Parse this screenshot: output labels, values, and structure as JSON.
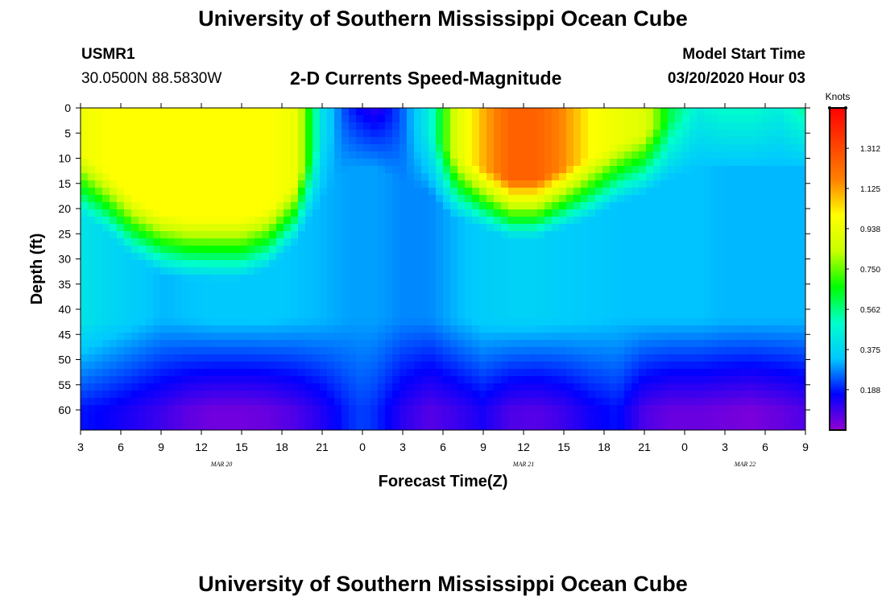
{
  "page": {
    "title": "University of Southern Mississippi Ocean Cube",
    "footer_title": "University of Southern Mississippi Ocean Cube",
    "station_id": "USMR1",
    "location": "30.0500N 88.5830W",
    "subtitle": "2-D Currents Speed-Magnitude",
    "model_start_label": "Model Start Time",
    "model_start_value": "03/20/2020 Hour 03"
  },
  "chart_data": {
    "type": "heatmap",
    "title": "2-D Currents Speed-Magnitude",
    "xlabel": "Forecast Time(Z)",
    "ylabel": "Depth (ft)",
    "x_hours_since_start": [
      0,
      54
    ],
    "ylim": [
      0,
      64
    ],
    "x_tick_labels": [
      "3",
      "6",
      "9",
      "12",
      "15",
      "18",
      "21",
      "0",
      "3",
      "6",
      "9",
      "12",
      "15",
      "18",
      "21",
      "0",
      "3",
      "6",
      "9"
    ],
    "y_ticks": [
      0,
      5,
      10,
      15,
      20,
      25,
      30,
      35,
      40,
      45,
      50,
      55,
      60
    ],
    "date_labels": [
      {
        "text": "MAR 20",
        "hour": 10.5
      },
      {
        "text": "MAR 21",
        "hour": 33
      },
      {
        "text": "MAR 22",
        "hour": 49.5
      }
    ],
    "colorbar": {
      "unit": "Knots",
      "range": [
        0,
        1.5
      ],
      "tick_labels": [
        "1.312",
        "1.125",
        "0.938",
        "0.750",
        "0.562",
        "0.375",
        "0.188"
      ],
      "tick_values": [
        1.312,
        1.125,
        0.938,
        0.75,
        0.562,
        0.375,
        0.188
      ],
      "colors": [
        "#9400d3",
        "#0000ff",
        "#00c8ff",
        "#00ffcc",
        "#00ff00",
        "#c8ff00",
        "#ffff00",
        "#ff8000",
        "#ff4000",
        "#ff0000"
      ]
    },
    "speed_columns": {
      "hours": [
        0,
        2,
        4,
        6,
        8,
        10,
        12,
        14,
        16,
        18,
        20,
        21,
        22,
        24,
        26,
        28,
        30,
        32,
        34,
        36,
        38,
        40,
        42,
        44,
        46,
        48,
        50,
        52,
        54
      ],
      "surface": [
        0.95,
        1.0,
        1.0,
        1.0,
        1.0,
        1.0,
        1.0,
        1.0,
        0.95,
        0.4,
        0.2,
        0.15,
        0.12,
        0.25,
        0.45,
        0.9,
        1.1,
        1.25,
        1.25,
        1.15,
        1.0,
        0.95,
        0.9,
        0.6,
        0.45,
        0.5,
        0.5,
        0.45,
        0.55
      ],
      "top_layer_depth_ft": [
        9,
        13,
        18,
        21,
        22,
        22,
        22,
        20,
        15,
        6,
        0,
        0,
        0,
        3,
        5,
        10,
        12,
        14,
        14,
        12,
        10,
        7,
        5,
        2,
        0,
        0,
        0,
        0,
        0
      ],
      "mid": [
        0.42,
        0.38,
        0.35,
        0.32,
        0.33,
        0.34,
        0.34,
        0.34,
        0.33,
        0.32,
        0.3,
        0.3,
        0.3,
        0.28,
        0.28,
        0.32,
        0.35,
        0.36,
        0.36,
        0.35,
        0.34,
        0.33,
        0.33,
        0.33,
        0.33,
        0.32,
        0.32,
        0.32,
        0.32
      ],
      "deep": [
        0.18,
        0.16,
        0.13,
        0.1,
        0.06,
        0.04,
        0.04,
        0.05,
        0.08,
        0.13,
        0.2,
        0.22,
        0.2,
        0.12,
        0.07,
        0.1,
        0.14,
        0.08,
        0.07,
        0.1,
        0.15,
        0.18,
        0.08,
        0.05,
        0.05,
        0.04,
        0.03,
        0.05,
        0.08
      ]
    }
  }
}
